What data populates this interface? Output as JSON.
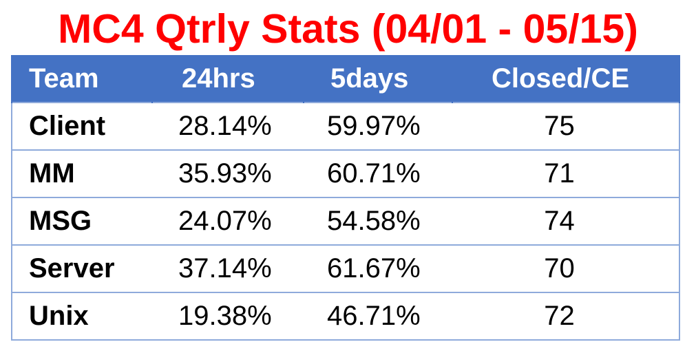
{
  "title": "MC4 Qtrly Stats (04/01 - 05/15)",
  "colors": {
    "title": "#ff0000",
    "header_background": "#4472c4",
    "header_text": "#ffffff",
    "grid_lines": "#8eaadb"
  },
  "table": {
    "headers": [
      "Team",
      "24hrs",
      "5days",
      "Closed/CE"
    ],
    "rows": [
      [
        "Client",
        "28.14%",
        "59.97%",
        "75"
      ],
      [
        "MM",
        "35.93%",
        "60.71%",
        "71"
      ],
      [
        "MSG",
        "24.07%",
        "54.58%",
        "74"
      ],
      [
        "Server",
        "37.14%",
        "61.67%",
        "70"
      ],
      [
        "Unix",
        "19.38%",
        "46.71%",
        "72"
      ]
    ]
  }
}
